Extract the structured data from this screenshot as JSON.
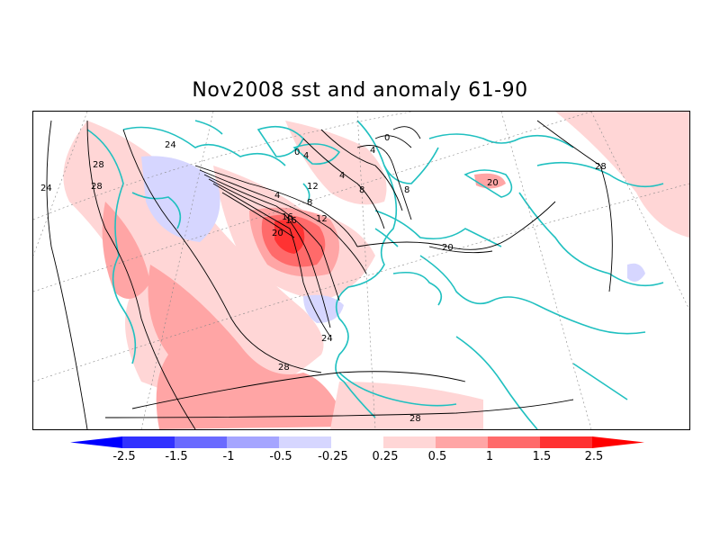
{
  "title": "Nov2008 sst and anomaly 61-90",
  "contour_labels": [
    "24",
    "28",
    "28",
    "24",
    "24",
    "28",
    "28",
    "20",
    "16",
    "12",
    "8",
    "4",
    "4",
    "0",
    "0",
    "4",
    "4",
    "8",
    "8",
    "12",
    "16",
    "20",
    "20",
    "28"
  ],
  "colorbar": {
    "labels": [
      "-2.5",
      "-1.5",
      "-1",
      "-0.5",
      "-0.25",
      "0.25",
      "0.5",
      "1",
      "1.5",
      "2.5"
    ],
    "colors": [
      "#0000ff",
      "#3232ff",
      "#6a6aff",
      "#a5a5ff",
      "#d6d6ff",
      "#ffffff",
      "#ffd6d6",
      "#ffa5a5",
      "#ff6a6a",
      "#ff3232",
      "#ff0000"
    ]
  }
}
